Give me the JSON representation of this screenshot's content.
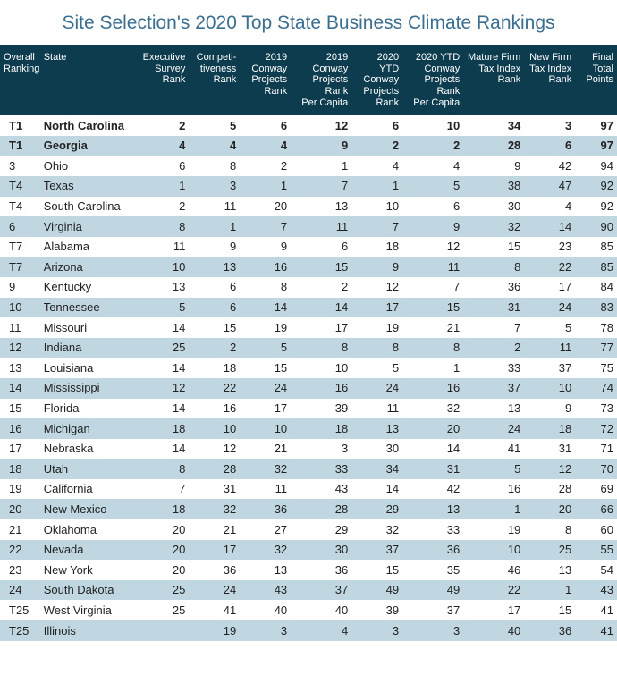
{
  "title": "Site Selection's 2020 Top State Business Climate Rankings",
  "title_color": "#3b6e8f",
  "title_fontsize": 21,
  "header_bg": "#0d3c4f",
  "header_fontsize": 11,
  "body_fontsize": 13,
  "stripe_odd": "#ffffff",
  "stripe_even": "#c0d7e2",
  "columns": [
    {
      "key": "rank",
      "label_lines": [
        "Overall",
        "Ranking"
      ],
      "class": "col-rank"
    },
    {
      "key": "state",
      "label_lines": [
        "State"
      ],
      "class": "col-state"
    },
    {
      "key": "exec",
      "label_lines": [
        "Executive",
        "Survey",
        "Rank"
      ],
      "class": ""
    },
    {
      "key": "comp",
      "label_lines": [
        "Competi-",
        "tiveness",
        "Rank"
      ],
      "class": ""
    },
    {
      "key": "proj19",
      "label_lines": [
        "2019",
        "Conway",
        "Projects",
        "Rank"
      ],
      "class": ""
    },
    {
      "key": "proj19pc",
      "label_lines": [
        "2019",
        "Conway",
        "Projects Rank",
        "Per Capita"
      ],
      "class": ""
    },
    {
      "key": "proj20",
      "label_lines": [
        "2020 YTD",
        "Conway",
        "Projects",
        "Rank"
      ],
      "class": ""
    },
    {
      "key": "proj20pc",
      "label_lines": [
        "2020 YTD",
        "Conway",
        "Projects Rank",
        "Per Capita"
      ],
      "class": ""
    },
    {
      "key": "mature",
      "label_lines": [
        "Mature Firm",
        "Tax Index",
        "Rank"
      ],
      "class": ""
    },
    {
      "key": "newfirm",
      "label_lines": [
        "New Firm",
        "Tax Index",
        "Rank"
      ],
      "class": ""
    },
    {
      "key": "final",
      "label_lines": [
        "Final",
        "Total",
        "Points"
      ],
      "class": ""
    }
  ],
  "rows": [
    {
      "bold": true,
      "rank": "T1",
      "state": "North Carolina",
      "exec": "2",
      "comp": "5",
      "proj19": "6",
      "proj19pc": "12",
      "proj20": "6",
      "proj20pc": "10",
      "mature": "34",
      "newfirm": "3",
      "final": "97"
    },
    {
      "bold": true,
      "rank": "T1",
      "state": "Georgia",
      "exec": "4",
      "comp": "4",
      "proj19": "4",
      "proj19pc": "9",
      "proj20": "2",
      "proj20pc": "2",
      "mature": "28",
      "newfirm": "6",
      "final": "97"
    },
    {
      "bold": false,
      "rank": "3",
      "state": "Ohio",
      "exec": "6",
      "comp": "8",
      "proj19": "2",
      "proj19pc": "1",
      "proj20": "4",
      "proj20pc": "4",
      "mature": "9",
      "newfirm": "42",
      "final": "94"
    },
    {
      "bold": false,
      "rank": "T4",
      "state": "Texas",
      "exec": "1",
      "comp": "3",
      "proj19": "1",
      "proj19pc": "7",
      "proj20": "1",
      "proj20pc": "5",
      "mature": "38",
      "newfirm": "47",
      "final": "92"
    },
    {
      "bold": false,
      "rank": "T4",
      "state": "South Carolina",
      "exec": "2",
      "comp": "11",
      "proj19": "20",
      "proj19pc": "13",
      "proj20": "10",
      "proj20pc": "6",
      "mature": "30",
      "newfirm": "4",
      "final": "92"
    },
    {
      "bold": false,
      "rank": "6",
      "state": "Virginia",
      "exec": "8",
      "comp": "1",
      "proj19": "7",
      "proj19pc": "11",
      "proj20": "7",
      "proj20pc": "9",
      "mature": "32",
      "newfirm": "14",
      "final": "90"
    },
    {
      "bold": false,
      "rank": "T7",
      "state": "Alabama",
      "exec": "11",
      "comp": "9",
      "proj19": "9",
      "proj19pc": "6",
      "proj20": "18",
      "proj20pc": "12",
      "mature": "15",
      "newfirm": "23",
      "final": "85"
    },
    {
      "bold": false,
      "rank": "T7",
      "state": "Arizona",
      "exec": "10",
      "comp": "13",
      "proj19": "16",
      "proj19pc": "15",
      "proj20": "9",
      "proj20pc": "11",
      "mature": "8",
      "newfirm": "22",
      "final": "85"
    },
    {
      "bold": false,
      "rank": "9",
      "state": "Kentucky",
      "exec": "13",
      "comp": "6",
      "proj19": "8",
      "proj19pc": "2",
      "proj20": "12",
      "proj20pc": "7",
      "mature": "36",
      "newfirm": "17",
      "final": "84"
    },
    {
      "bold": false,
      "rank": "10",
      "state": "Tennessee",
      "exec": "5",
      "comp": "6",
      "proj19": "14",
      "proj19pc": "14",
      "proj20": "17",
      "proj20pc": "15",
      "mature": "31",
      "newfirm": "24",
      "final": "83"
    },
    {
      "bold": false,
      "rank": "11",
      "state": "Missouri",
      "exec": "14",
      "comp": "15",
      "proj19": "19",
      "proj19pc": "17",
      "proj20": "19",
      "proj20pc": "21",
      "mature": "7",
      "newfirm": "5",
      "final": "78"
    },
    {
      "bold": false,
      "rank": "12",
      "state": "Indiana",
      "exec": "25",
      "comp": "2",
      "proj19": "5",
      "proj19pc": "8",
      "proj20": "8",
      "proj20pc": "8",
      "mature": "2",
      "newfirm": "11",
      "final": "77"
    },
    {
      "bold": false,
      "rank": "13",
      "state": "Louisiana",
      "exec": "14",
      "comp": "18",
      "proj19": "15",
      "proj19pc": "10",
      "proj20": "5",
      "proj20pc": "1",
      "mature": "33",
      "newfirm": "37",
      "final": "75"
    },
    {
      "bold": false,
      "rank": "14",
      "state": "Mississippi",
      "exec": "12",
      "comp": "22",
      "proj19": "24",
      "proj19pc": "16",
      "proj20": "24",
      "proj20pc": "16",
      "mature": "37",
      "newfirm": "10",
      "final": "74"
    },
    {
      "bold": false,
      "rank": "15",
      "state": "Florida",
      "exec": "14",
      "comp": "16",
      "proj19": "17",
      "proj19pc": "39",
      "proj20": "11",
      "proj20pc": "32",
      "mature": "13",
      "newfirm": "9",
      "final": "73"
    },
    {
      "bold": false,
      "rank": "16",
      "state": "Michigan",
      "exec": "18",
      "comp": "10",
      "proj19": "10",
      "proj19pc": "18",
      "proj20": "13",
      "proj20pc": "20",
      "mature": "24",
      "newfirm": "18",
      "final": "72"
    },
    {
      "bold": false,
      "rank": "17",
      "state": "Nebraska",
      "exec": "14",
      "comp": "12",
      "proj19": "21",
      "proj19pc": "3",
      "proj20": "30",
      "proj20pc": "14",
      "mature": "41",
      "newfirm": "31",
      "final": "71"
    },
    {
      "bold": false,
      "rank": "18",
      "state": "Utah",
      "exec": "8",
      "comp": "28",
      "proj19": "32",
      "proj19pc": "33",
      "proj20": "34",
      "proj20pc": "31",
      "mature": "5",
      "newfirm": "12",
      "final": "70"
    },
    {
      "bold": false,
      "rank": "19",
      "state": "California",
      "exec": "7",
      "comp": "31",
      "proj19": "11",
      "proj19pc": "43",
      "proj20": "14",
      "proj20pc": "42",
      "mature": "16",
      "newfirm": "28",
      "final": "69"
    },
    {
      "bold": false,
      "rank": "20",
      "state": "New Mexico",
      "exec": "18",
      "comp": "32",
      "proj19": "36",
      "proj19pc": "28",
      "proj20": "29",
      "proj20pc": "13",
      "mature": "1",
      "newfirm": "20",
      "final": "66"
    },
    {
      "bold": false,
      "rank": "21",
      "state": "Oklahoma",
      "exec": "20",
      "comp": "21",
      "proj19": "27",
      "proj19pc": "29",
      "proj20": "32",
      "proj20pc": "33",
      "mature": "19",
      "newfirm": "8",
      "final": "60"
    },
    {
      "bold": false,
      "rank": "22",
      "state": "Nevada",
      "exec": "20",
      "comp": "17",
      "proj19": "32",
      "proj19pc": "30",
      "proj20": "37",
      "proj20pc": "36",
      "mature": "10",
      "newfirm": "25",
      "final": "55"
    },
    {
      "bold": false,
      "rank": "23",
      "state": "New York",
      "exec": "20",
      "comp": "36",
      "proj19": "13",
      "proj19pc": "36",
      "proj20": "15",
      "proj20pc": "35",
      "mature": "46",
      "newfirm": "13",
      "final": "54"
    },
    {
      "bold": false,
      "rank": "24",
      "state": "South Dakota",
      "exec": "25",
      "comp": "24",
      "proj19": "43",
      "proj19pc": "37",
      "proj20": "49",
      "proj20pc": "49",
      "mature": "22",
      "newfirm": "1",
      "final": "43"
    },
    {
      "bold": false,
      "rank": "T25",
      "state": "West Virginia",
      "exec": "25",
      "comp": "41",
      "proj19": "40",
      "proj19pc": "40",
      "proj20": "39",
      "proj20pc": "37",
      "mature": "17",
      "newfirm": "15",
      "final": "41"
    },
    {
      "bold": false,
      "rank": "T25",
      "state": "Illinois",
      "exec": "",
      "comp": "19",
      "proj19": "3",
      "proj19pc": "4",
      "proj20": "3",
      "proj20pc": "3",
      "mature": "40",
      "newfirm": "36",
      "final": "41"
    }
  ]
}
